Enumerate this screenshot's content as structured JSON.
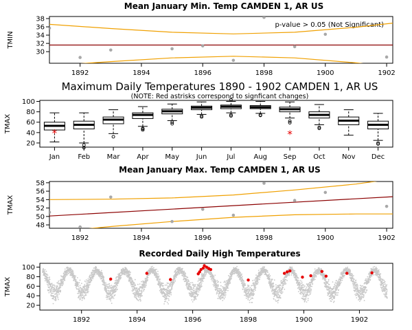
{
  "chart_data": [
    {
      "id": "tmin",
      "type": "scatter",
      "title": "Mean January Min. Temp CAMDEN 1, AR US",
      "ylabel": "TMIN",
      "xlim": [
        1891,
        1902.2
      ],
      "ylim": [
        27.2,
        38.5
      ],
      "x_ticks": [
        1892,
        1894,
        1896,
        1898,
        1900,
        1902
      ],
      "y_ticks": [
        30,
        32,
        34,
        36,
        38
      ],
      "annotation": "p-value > 0.05 (Not Significant)",
      "points": [
        [
          1891,
          35.7
        ],
        [
          1892,
          28.6
        ],
        [
          1893,
          30.4
        ],
        [
          1895,
          30.7
        ],
        [
          1896,
          31.4
        ],
        [
          1897,
          27.9
        ],
        [
          1898,
          38.3
        ],
        [
          1899,
          31.2
        ],
        [
          1900,
          34.2
        ],
        [
          1902,
          28.7
        ]
      ],
      "trend": [
        [
          1891,
          31.6
        ],
        [
          1902.2,
          31.6
        ]
      ],
      "upper_band": [
        [
          1891,
          36.6
        ],
        [
          1893,
          35.6
        ],
        [
          1895,
          34.7
        ],
        [
          1897,
          34.3
        ],
        [
          1899,
          34.7
        ],
        [
          1901,
          35.9
        ],
        [
          1902.2,
          36.9
        ]
      ],
      "lower_band": [
        [
          1891,
          26.6
        ],
        [
          1893,
          27.6
        ],
        [
          1895,
          28.5
        ],
        [
          1897,
          28.9
        ],
        [
          1899,
          28.5
        ],
        [
          1901,
          27.3
        ],
        [
          1902.2,
          26.3
        ]
      ]
    },
    {
      "id": "boxplot",
      "type": "box",
      "title": "Maximum Daily Temperatures 1890 - 1902 CAMDEN 1, AR US",
      "subtitle": "(NOTE: Red astrisks correspond to signficant changes)",
      "ylabel": "TMAX",
      "ylim": [
        12,
        102
      ],
      "y_ticks": [
        20,
        40,
        60,
        80,
        100
      ],
      "categories": [
        "Jan",
        "Feb",
        "Mar",
        "Apr",
        "May",
        "Jun",
        "Jul",
        "Aug",
        "Sep",
        "Oct",
        "Nov",
        "Dec"
      ],
      "boxes": [
        {
          "whislo": 22,
          "q1": 45,
          "med": 53,
          "q3": 60,
          "whishi": 78,
          "fliers": [],
          "significant": true
        },
        {
          "whislo": 20,
          "q1": 47,
          "med": 55,
          "q3": 62,
          "whishi": 78,
          "fliers": [
            11,
            16
          ],
          "significant": false
        },
        {
          "whislo": 38,
          "q1": 57,
          "med": 65,
          "q3": 70,
          "whishi": 84,
          "fliers": [
            32
          ],
          "significant": false
        },
        {
          "whislo": 52,
          "q1": 67,
          "med": 74,
          "q3": 78,
          "whishi": 90,
          "fliers": [
            45,
            47,
            48
          ],
          "significant": false
        },
        {
          "whislo": 63,
          "q1": 76,
          "med": 81,
          "q3": 85,
          "whishi": 95,
          "fliers": [
            57,
            60
          ],
          "significant": false
        },
        {
          "whislo": 75,
          "q1": 84,
          "med": 88,
          "q3": 91,
          "whishi": 99,
          "fliers": [
            70,
            72
          ],
          "significant": false
        },
        {
          "whislo": 78,
          "q1": 86,
          "med": 90,
          "q3": 93,
          "whishi": 100,
          "fliers": [
            72,
            74,
            103
          ],
          "significant": false
        },
        {
          "whislo": 77,
          "q1": 86,
          "med": 89,
          "q3": 92,
          "whishi": 100,
          "fliers": [
            73,
            74
          ],
          "significant": false
        },
        {
          "whislo": 68,
          "q1": 80,
          "med": 85,
          "q3": 89,
          "whishi": 99,
          "fliers": [
            59,
            62
          ],
          "significant": true
        },
        {
          "whislo": 55,
          "q1": 68,
          "med": 74,
          "q3": 80,
          "whishi": 94,
          "fliers": [
            48,
            50
          ],
          "significant": false
        },
        {
          "whislo": 35,
          "q1": 55,
          "med": 63,
          "q3": 70,
          "whishi": 84,
          "fliers": [],
          "significant": false
        },
        {
          "whislo": 25,
          "q1": 47,
          "med": 55,
          "q3": 62,
          "whishi": 77,
          "fliers": [
            18,
            20
          ],
          "significant": false
        }
      ],
      "significant_markers": [
        {
          "category": "Jan",
          "value": 40
        },
        {
          "category": "Sep",
          "value": 38
        }
      ]
    },
    {
      "id": "tmax",
      "type": "scatter",
      "title": "Mean January Max. Temp CAMDEN 1, AR US",
      "ylabel": "TMAX",
      "xlim": [
        1891,
        1902.2
      ],
      "ylim": [
        47.2,
        58.3
      ],
      "x_ticks": [
        1892,
        1894,
        1896,
        1898,
        1900,
        1902
      ],
      "y_ticks": [
        48,
        50,
        52,
        54,
        56,
        58
      ],
      "points": [
        [
          1891,
          51.0
        ],
        [
          1892,
          47.5
        ],
        [
          1893,
          54.6
        ],
        [
          1895,
          48.8
        ],
        [
          1896,
          51.7
        ],
        [
          1897,
          50.3
        ],
        [
          1898,
          57.9
        ],
        [
          1899,
          53.8
        ],
        [
          1900,
          55.7
        ],
        [
          1902,
          52.4
        ]
      ],
      "trend": [
        [
          1891,
          50.1
        ],
        [
          1902.2,
          54.7
        ]
      ],
      "upper_band": [
        [
          1891,
          54.0
        ],
        [
          1893,
          54.1
        ],
        [
          1895,
          54.4
        ],
        [
          1897,
          55.1
        ],
        [
          1899,
          56.3
        ],
        [
          1901,
          57.7
        ],
        [
          1902.2,
          58.9
        ]
      ],
      "lower_band": [
        [
          1891,
          46.2
        ],
        [
          1893,
          47.6
        ],
        [
          1895,
          48.8
        ],
        [
          1897,
          49.8
        ],
        [
          1899,
          50.4
        ],
        [
          1901,
          50.6
        ],
        [
          1902.2,
          50.6
        ]
      ]
    },
    {
      "id": "daily",
      "type": "scatter",
      "title": "Recorded Daily High Temperatures",
      "ylabel": "TMAX",
      "xlim": [
        1890.5,
        1903.2
      ],
      "ylim": [
        10,
        108
      ],
      "x_ticks": [
        1892,
        1894,
        1896,
        1898,
        1900,
        1902
      ],
      "y_ticks": [
        20,
        40,
        60,
        80,
        100
      ],
      "series": [
        {
          "color": "#c8c8c8",
          "start_year": 1890.6,
          "end_year": 1903.0,
          "seasonal_mean": 69,
          "seasonal_amplitude": 24
        },
        {
          "color": "#e60000",
          "points": [
            [
              1893.05,
              75
            ],
            [
              1894.35,
              87
            ],
            [
              1895.2,
              74
            ],
            [
              1896.2,
              86
            ],
            [
              1896.25,
              90
            ],
            [
              1896.3,
              95
            ],
            [
              1896.38,
              98
            ],
            [
              1896.42,
              103
            ],
            [
              1896.5,
              100
            ],
            [
              1896.58,
              97
            ],
            [
              1896.65,
              95
            ],
            [
              1898.0,
              73
            ],
            [
              1899.3,
              87
            ],
            [
              1899.4,
              90
            ],
            [
              1899.5,
              92
            ],
            [
              1899.95,
              79
            ],
            [
              1900.25,
              82
            ],
            [
              1900.65,
              91
            ],
            [
              1900.8,
              81
            ],
            [
              1901.55,
              87
            ],
            [
              1902.45,
              88
            ]
          ]
        }
      ]
    }
  ]
}
